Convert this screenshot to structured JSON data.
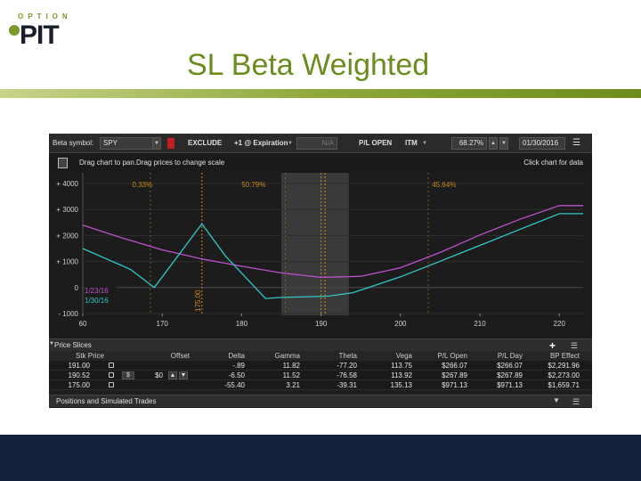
{
  "slide": {
    "logo_top": "OPTION",
    "logo_main": "PIT",
    "title": "SL Beta Weighted"
  },
  "toolbar": {
    "beta_label": "Beta symbol:",
    "symbol": "SPY",
    "exclude": "EXCLUDE",
    "expiration": "+1 @ Expiration",
    "na": "N/A",
    "pl_open": "P/L OPEN",
    "itm": "ITM",
    "percent": "68.27%",
    "date": "01/30/2016"
  },
  "hint": {
    "left": "Drag chart to pan.Drag prices to change scale",
    "right": "Click chart for data"
  },
  "chart_data": {
    "type": "line",
    "x_ticks": [
      "60",
      "170",
      "180",
      "190",
      "200",
      "210",
      "220"
    ],
    "y_ticks": [
      "+ 4000",
      "+ 3000",
      "+ 2000",
      "+ 1000",
      "0",
      "- 1000"
    ],
    "xlim": [
      160,
      223
    ],
    "ylim": [
      -1000,
      4000
    ],
    "prob_labels": [
      {
        "x": 167.5,
        "text": "0.33%"
      },
      {
        "x": 181.5,
        "text": "50.79%"
      },
      {
        "x": 205.5,
        "text": "45.64%"
      }
    ],
    "vline_label": "175.00",
    "legend": [
      "1/23/16",
      "1/30/16"
    ],
    "series": [
      {
        "name": "1/23/16",
        "color": "#c050d0",
        "x": [
          160,
          165,
          170,
          175,
          180,
          185,
          190,
          195,
          200,
          205,
          210,
          215,
          220,
          223
        ],
        "y": [
          2400,
          1900,
          1450,
          1100,
          820,
          560,
          390,
          430,
          760,
          1350,
          2020,
          2620,
          3150,
          3150
        ]
      },
      {
        "name": "1/30/16",
        "color": "#30c8c8",
        "x": [
          160,
          166,
          169,
          175,
          178,
          183,
          185,
          189,
          191,
          194,
          196,
          200,
          205,
          210,
          215,
          220,
          223
        ],
        "y": [
          1500,
          700,
          0,
          2450,
          1200,
          -420,
          -380,
          -350,
          -330,
          -200,
          0,
          410,
          1010,
          1620,
          2230,
          2840,
          2840
        ]
      }
    ]
  },
  "price_slices": {
    "title": "Price Slices",
    "plus": "+",
    "columns": [
      "Stk Price",
      "Offset",
      "Delta",
      "Gamma",
      "Theta",
      "Vega",
      "P/L Open",
      "P/L Day",
      "BP Effect"
    ],
    "rows": [
      {
        "stk": "191.00",
        "offset_dollar": "",
        "offset_val": "",
        "delta": "-.89",
        "gamma": "11.82",
        "theta": "-77.20",
        "vega": "113.75",
        "pl_open": "$266.07",
        "pl_day": "$266.07",
        "bp": "$2,291.96"
      },
      {
        "stk": "190.52",
        "offset_dollar": "$",
        "offset_val": "$0",
        "delta": "-6.50",
        "gamma": "11.52",
        "theta": "-76.58",
        "vega": "113.92",
        "pl_open": "$267.89",
        "pl_day": "$267.89",
        "bp": "$2,273.00"
      },
      {
        "stk": "175.00",
        "offset_dollar": "",
        "offset_val": "",
        "delta": "-55.40",
        "gamma": "3.21",
        "theta": "-39.31",
        "vega": "135.13",
        "pl_open": "$971.13",
        "pl_day": "$971.13",
        "bp": "$1,659.71"
      }
    ]
  },
  "positions": {
    "title": "Positions and Simulated Trades"
  }
}
